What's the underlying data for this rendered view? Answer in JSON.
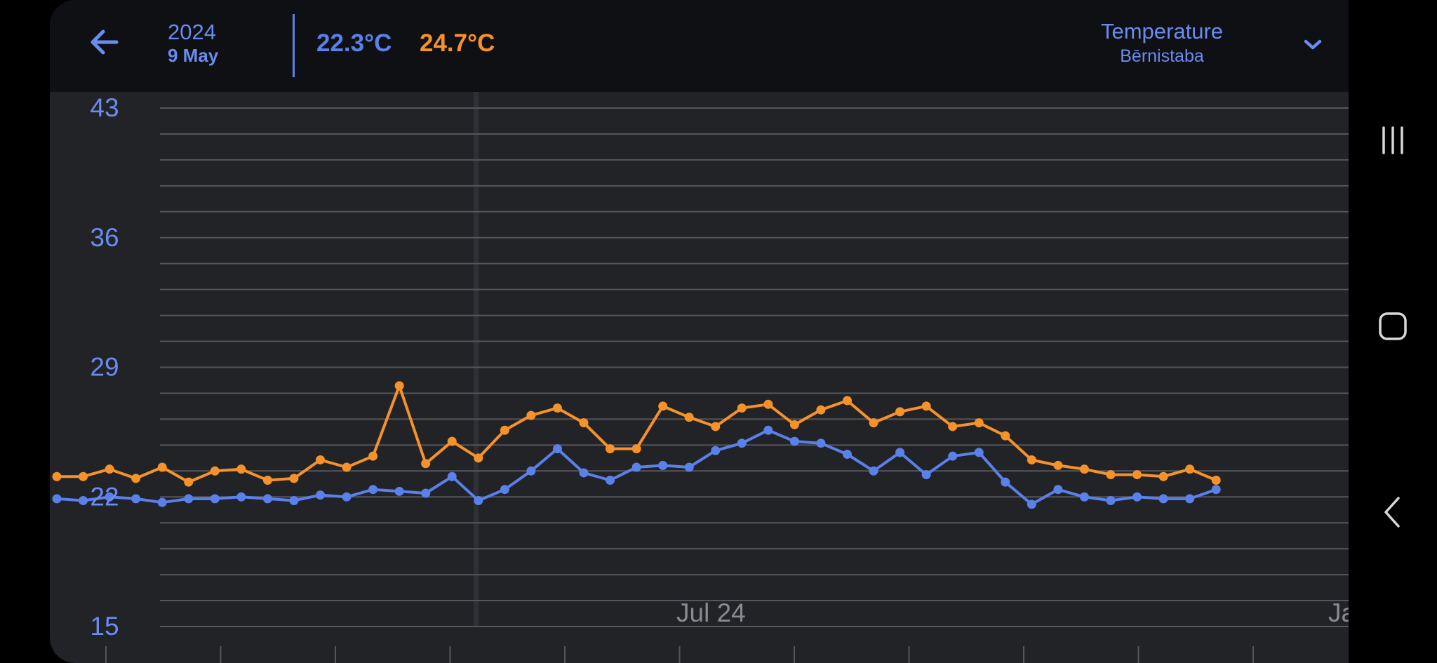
{
  "header": {
    "year": "2024",
    "date": "9 May",
    "current_value_blue": "22.3°C",
    "current_value_orange": "24.7°C",
    "metric": "Temperature",
    "location": "Bērnistaba"
  },
  "colors": {
    "blue": "#5a80ea",
    "orange": "#f6922a",
    "header_bg": "#0f1014",
    "chart_bg": "#222327",
    "grid": "#55565b"
  },
  "icons": {
    "back": "arrow-left-icon",
    "dropdown": "chevron-down-icon",
    "recents": "recent-apps-icon",
    "home": "home-icon",
    "nav_back": "chevron-left-icon"
  },
  "chart_data": {
    "type": "line",
    "title": "",
    "xlabel": "",
    "ylabel": "",
    "y_tick_labels": [
      "43",
      "36",
      "29",
      "22",
      "15"
    ],
    "x_tick_labels": [
      "Jul 24",
      "Ja"
    ],
    "ylim": [
      15,
      43
    ],
    "grid": true,
    "x": [
      0,
      1,
      2,
      3,
      4,
      5,
      6,
      7,
      8,
      9,
      10,
      11,
      12,
      13,
      14,
      15,
      16,
      17,
      18,
      19,
      20,
      21,
      22,
      23,
      24,
      25,
      26,
      27,
      28,
      29,
      30,
      31,
      32,
      33,
      34,
      35,
      36,
      37,
      38,
      39,
      40,
      41,
      42,
      43,
      44
    ],
    "series": [
      {
        "color": "#f6922a",
        "values": [
          23.1,
          23.1,
          23.5,
          23.0,
          23.6,
          22.8,
          23.4,
          23.5,
          22.9,
          23.0,
          24.0,
          23.6,
          24.2,
          28.0,
          23.8,
          25.0,
          24.1,
          25.6,
          26.4,
          26.8,
          26.0,
          24.6,
          24.6,
          26.9,
          26.3,
          25.8,
          26.8,
          27.0,
          25.9,
          26.7,
          27.2,
          26.0,
          26.6,
          26.9,
          25.8,
          26.0,
          25.3,
          24.0,
          23.7,
          23.5,
          23.2,
          23.2,
          23.1,
          23.5,
          22.9
        ]
      },
      {
        "color": "#5a80ea",
        "values": [
          21.9,
          21.8,
          22.0,
          21.9,
          21.7,
          21.9,
          21.9,
          22.0,
          21.9,
          21.8,
          22.1,
          22.0,
          22.4,
          22.3,
          22.2,
          23.1,
          21.8,
          22.4,
          23.4,
          24.6,
          23.3,
          22.9,
          23.6,
          23.7,
          23.6,
          24.5,
          24.9,
          25.6,
          25.0,
          24.9,
          24.3,
          23.4,
          24.4,
          23.2,
          24.2,
          24.4,
          22.8,
          21.6,
          22.4,
          22.0,
          21.8,
          22.0,
          21.9,
          21.9,
          22.4
        ]
      }
    ]
  }
}
